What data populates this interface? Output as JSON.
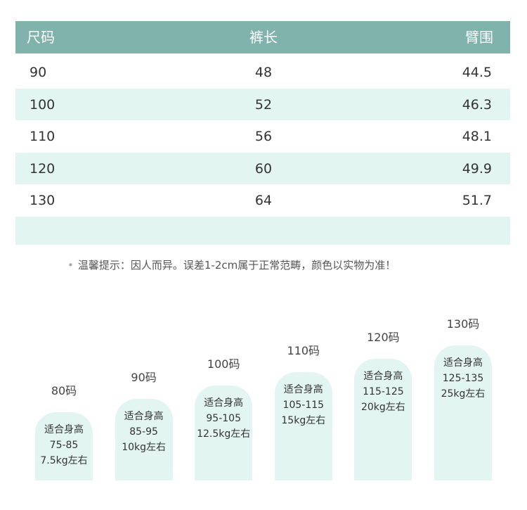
{
  "table": {
    "headers": [
      "尺码",
      "裤长",
      "臂围"
    ],
    "rows": [
      [
        90,
        48,
        44.5
      ],
      [
        100,
        52,
        46.3
      ],
      [
        110,
        56,
        48.1
      ],
      [
        120,
        60,
        49.9
      ],
      [
        130,
        64,
        51.7
      ]
    ]
  },
  "note": "温馨提示：因人而异。误差1-2cm属于正常范畴，颜色以实物为准！",
  "sizes": [
    {
      "label": "80码",
      "lines": [
        "适合身高",
        "75-85",
        "7.5kg左右"
      ]
    },
    {
      "label": "90码",
      "lines": [
        "适合身高",
        "85-95",
        "10kg左右"
      ]
    },
    {
      "label": "100码",
      "lines": [
        "适合身高",
        "95-105",
        "12.5kg左右"
      ]
    },
    {
      "label": "110码",
      "lines": [
        "适合身高",
        "105-115",
        "15kg左右"
      ]
    },
    {
      "label": "120码",
      "lines": [
        "适合身高",
        "115-125",
        "20kg左右"
      ]
    },
    {
      "label": "130码",
      "lines": [
        "适合身高",
        "125-135",
        "25kg左右"
      ]
    }
  ]
}
